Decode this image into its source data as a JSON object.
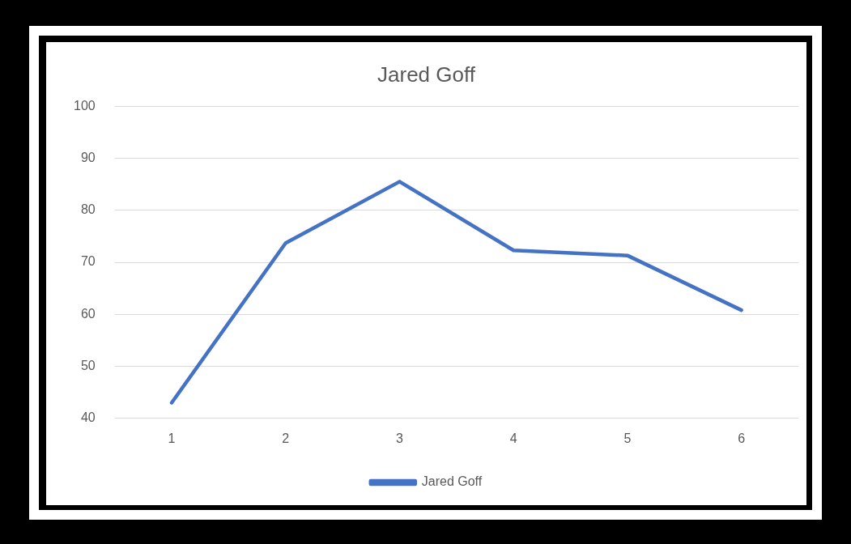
{
  "chart_data": {
    "type": "line",
    "title": "Jared Goff",
    "categories": [
      "1",
      "2",
      "3",
      "4",
      "5",
      "6"
    ],
    "series": [
      {
        "name": "Jared Goff",
        "color": "#4472c4",
        "values": [
          43,
          73.7,
          85.5,
          72.3,
          71.3,
          60.8
        ]
      }
    ],
    "ylim": [
      40,
      100
    ],
    "yticks": [
      40,
      50,
      60,
      70,
      80,
      90,
      100
    ],
    "grid": "y",
    "legend": "bottom",
    "marker": "none",
    "line_style": "solid"
  }
}
